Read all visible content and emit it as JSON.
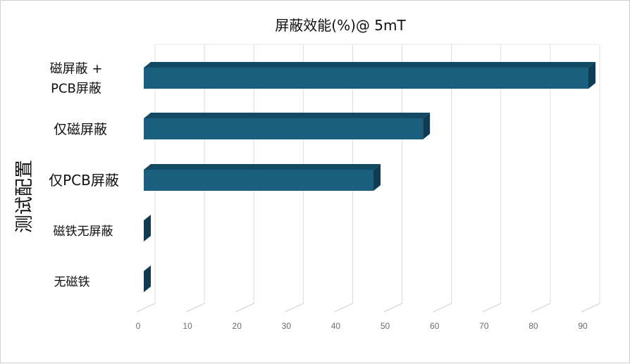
{
  "chart_data": {
    "type": "bar",
    "orientation": "horizontal",
    "title": "屏蔽效能(%)@ 5mT",
    "xlabel": "",
    "ylabel": "测试配置",
    "categories": [
      [
        "磁屏蔽 +",
        "PCB屏蔽"
      ],
      [
        "仅磁屏蔽"
      ],
      [
        "仅PCB屏蔽"
      ],
      [
        "磁铁无屏蔽"
      ],
      [
        "无磁铁"
      ]
    ],
    "values": [
      90,
      56.5,
      46.5,
      0,
      0
    ],
    "xlim": [
      0,
      90
    ],
    "xticks": [
      "0",
      "10",
      "20",
      "30",
      "40",
      "50",
      "60",
      "70",
      "80",
      "90"
    ],
    "grid": true,
    "bar_color": "#1a5f7d",
    "bar_top_color": "#134a63",
    "bar_side_color": "#0f3c52"
  }
}
